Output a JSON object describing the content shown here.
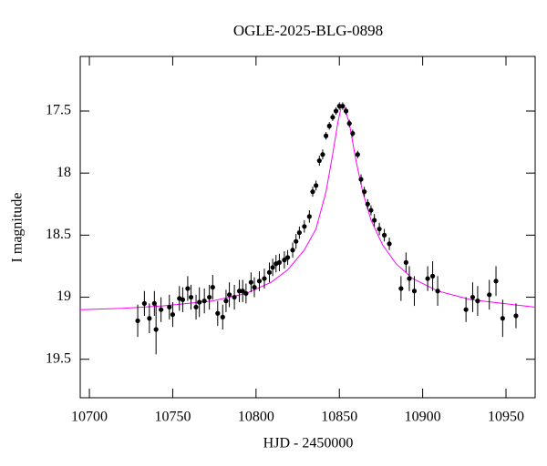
{
  "chart_data": {
    "type": "scatter",
    "title": "OGLE-2025-BLG-0898",
    "x_label": "HJD - 2450000",
    "y_label": "I magnitude",
    "xlim": [
      10694.5,
      10967.5
    ],
    "ylim": [
      19.81,
      17.06
    ],
    "xticks": [
      10700,
      10750,
      10800,
      10850,
      10900,
      10950
    ],
    "yticks": [
      17.5,
      18,
      18.5,
      19,
      19.5
    ],
    "series": [
      {
        "name": "data",
        "type": "scatter",
        "color": "#000000",
        "x": [
          10729,
          10733,
          10736,
          10739,
          10740,
          10743,
          10748,
          10750,
          10754,
          10756,
          10759,
          10761,
          10764,
          10766,
          10769,
          10772,
          10774,
          10777,
          10780,
          10782,
          10784,
          10787,
          10790,
          10792,
          10794,
          10797,
          10799,
          10802,
          10805,
          10808,
          10810,
          10812,
          10814,
          10817,
          10819,
          10822,
          10824,
          10826,
          10829,
          10832,
          10834,
          10836,
          10838,
          10840,
          10842,
          10844,
          10846,
          10848,
          10850,
          10852,
          10854,
          10856,
          10858,
          10861,
          10863,
          10865,
          10867,
          10869,
          10871,
          10874,
          10877,
          10880,
          10887,
          10890,
          10892,
          10895,
          10903,
          10906,
          10909,
          10926,
          10930,
          10933,
          10940,
          10944,
          10948,
          10956
        ],
        "values": [
          19.19,
          19.05,
          19.17,
          19.05,
          19.26,
          19.1,
          19.08,
          19.14,
          19.01,
          19.02,
          18.93,
          19.0,
          19.08,
          19.04,
          19.03,
          19.0,
          18.92,
          19.13,
          19.16,
          19.03,
          18.98,
          19.0,
          18.95,
          18.95,
          18.97,
          18.88,
          18.92,
          18.87,
          18.85,
          18.8,
          18.76,
          18.73,
          18.72,
          18.7,
          18.68,
          18.62,
          18.55,
          18.48,
          18.43,
          18.35,
          18.15,
          18.1,
          17.9,
          17.85,
          17.7,
          17.62,
          17.55,
          17.5,
          17.46,
          17.46,
          17.5,
          17.6,
          17.68,
          17.85,
          18.05,
          18.15,
          18.25,
          18.3,
          18.38,
          18.45,
          18.5,
          18.57,
          18.93,
          18.72,
          18.85,
          18.95,
          18.85,
          18.83,
          18.95,
          19.1,
          19.0,
          19.03,
          18.98,
          18.87,
          19.17,
          19.15
        ],
        "errors": [
          0.13,
          0.1,
          0.12,
          0.1,
          0.2,
          0.1,
          0.1,
          0.1,
          0.1,
          0.1,
          0.1,
          0.1,
          0.1,
          0.12,
          0.1,
          0.1,
          0.1,
          0.1,
          0.1,
          0.09,
          0.1,
          0.1,
          0.09,
          0.09,
          0.08,
          0.08,
          0.08,
          0.08,
          0.08,
          0.08,
          0.07,
          0.07,
          0.07,
          0.07,
          0.06,
          0.06,
          0.06,
          0.05,
          0.05,
          0.05,
          0.04,
          0.04,
          0.04,
          0.04,
          0.03,
          0.03,
          0.03,
          0.03,
          0.03,
          0.03,
          0.03,
          0.03,
          0.03,
          0.03,
          0.04,
          0.04,
          0.04,
          0.04,
          0.05,
          0.05,
          0.05,
          0.05,
          0.1,
          0.08,
          0.1,
          0.12,
          0.1,
          0.12,
          0.12,
          0.1,
          0.12,
          0.12,
          0.12,
          0.12,
          0.15,
          0.1
        ]
      },
      {
        "name": "model",
        "type": "line",
        "color": "#ff00ff",
        "x": [
          10694.5,
          10720,
          10744,
          10774,
          10794,
          10809,
          10819,
          10829,
          10836,
          10842,
          10846,
          10849,
          10851,
          10853,
          10856,
          10860,
          10864,
          10869,
          10876,
          10884,
          10894,
          10909,
          10929,
          10967.5
        ],
        "values": [
          19.1,
          19.09,
          19.07,
          19.03,
          18.97,
          18.88,
          18.78,
          18.62,
          18.45,
          18.15,
          17.85,
          17.6,
          17.47,
          17.47,
          17.6,
          17.9,
          18.15,
          18.38,
          18.58,
          18.73,
          18.85,
          18.95,
          19.02,
          19.08
        ]
      }
    ]
  }
}
